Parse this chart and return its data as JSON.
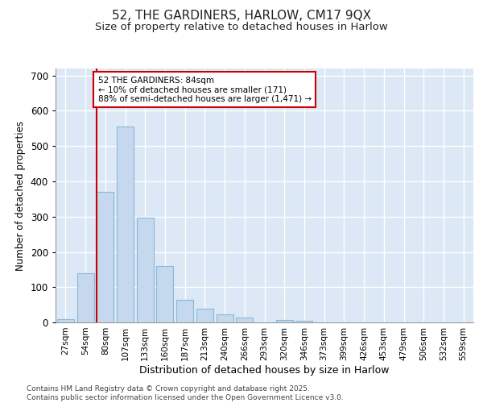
{
  "title_line1": "52, THE GARDINERS, HARLOW, CM17 9QX",
  "title_line2": "Size of property relative to detached houses in Harlow",
  "xlabel": "Distribution of detached houses by size in Harlow",
  "ylabel": "Number of detached properties",
  "categories": [
    "27sqm",
    "54sqm",
    "80sqm",
    "107sqm",
    "133sqm",
    "160sqm",
    "187sqm",
    "213sqm",
    "240sqm",
    "266sqm",
    "293sqm",
    "320sqm",
    "346sqm",
    "373sqm",
    "399sqm",
    "426sqm",
    "453sqm",
    "479sqm",
    "506sqm",
    "532sqm",
    "559sqm"
  ],
  "values": [
    10,
    139,
    370,
    555,
    298,
    160,
    65,
    40,
    22,
    13,
    0,
    8,
    4,
    0,
    0,
    0,
    0,
    0,
    0,
    0,
    0
  ],
  "bar_color": "#c5d8ed",
  "bar_edge_color": "#89b8d8",
  "background_color": "#dce8f5",
  "plot_bg_color": "#dce8f5",
  "grid_color": "#ffffff",
  "vline_color": "#cc0000",
  "vline_x_index": 2,
  "annotation_text": "52 THE GARDINERS: 84sqm\n← 10% of detached houses are smaller (171)\n88% of semi-detached houses are larger (1,471) →",
  "annotation_box_facecolor": "#ffffff",
  "annotation_box_edgecolor": "#cc0000",
  "ylim": [
    0,
    720
  ],
  "yticks": [
    0,
    100,
    200,
    300,
    400,
    500,
    600,
    700
  ],
  "footer_line1": "Contains HM Land Registry data © Crown copyright and database right 2025.",
  "footer_line2": "Contains public sector information licensed under the Open Government Licence v3.0.",
  "fig_width": 6.0,
  "fig_height": 5.0,
  "dpi": 100
}
